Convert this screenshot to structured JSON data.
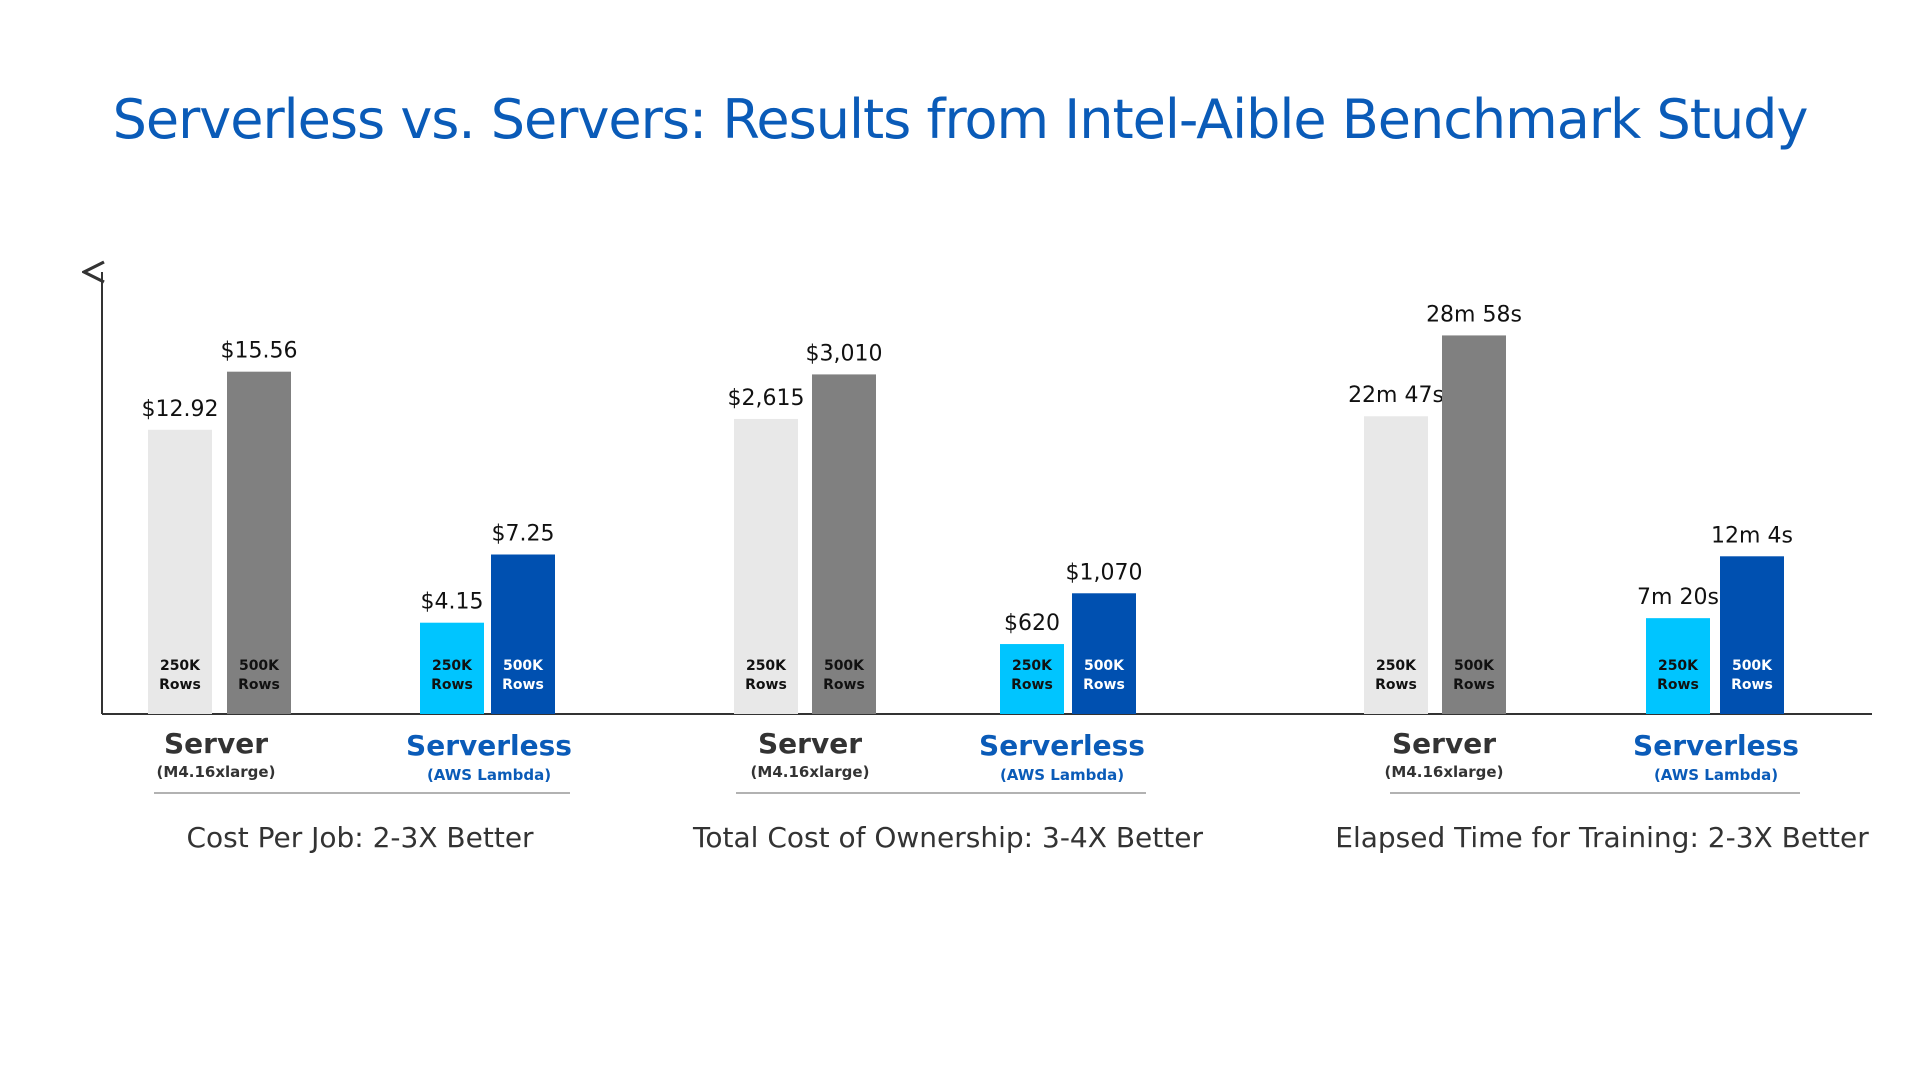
{
  "title": "Serverless vs. Servers: Results from Intel-Aible Benchmark Study",
  "colors": {
    "title": "#0a5bb8",
    "server_250k": "#e8e8e8",
    "server_500k": "#808080",
    "serverless_250k": "#00c5ff",
    "serverless_500k": "#0050b0",
    "serverless_label": "#0a5bb8",
    "axis": "#333333"
  },
  "chart_data": [
    {
      "type": "bar",
      "caption": "Cost Per Job: 2-3X Better",
      "categories": [
        "Server",
        "Serverless"
      ],
      "category_sublabels": [
        "(M4.16xlarge)",
        "(AWS Lambda)"
      ],
      "series": [
        {
          "name": "250K Rows",
          "values": [
            12.92,
            4.15
          ]
        },
        {
          "name": "500K Rows",
          "values": [
            15.56,
            7.25
          ]
        }
      ],
      "data_labels": [
        [
          "$12.92",
          "$4.15"
        ],
        [
          "$15.56",
          "$7.25"
        ]
      ],
      "bar_labels": [
        "250K Rows",
        "500K Rows"
      ],
      "ylim": [
        0,
        20
      ]
    },
    {
      "type": "bar",
      "caption": "Total Cost of Ownership: 3-4X Better",
      "categories": [
        "Server",
        "Serverless"
      ],
      "category_sublabels": [
        "(M4.16xlarge)",
        "(AWS Lambda)"
      ],
      "series": [
        {
          "name": "250K Rows",
          "values": [
            2615,
            620
          ]
        },
        {
          "name": "500K Rows",
          "values": [
            3010,
            1070
          ]
        }
      ],
      "data_labels": [
        [
          "$2,615",
          "$620"
        ],
        [
          "$3,010",
          "$1,070"
        ]
      ],
      "bar_labels": [
        "250K Rows",
        "500K Rows"
      ],
      "ylim": [
        0,
        3900
      ]
    },
    {
      "type": "bar",
      "caption": "Elapsed Time for Training: 2-3X Better",
      "categories": [
        "Server",
        "Serverless"
      ],
      "category_sublabels": [
        "(M4.16xlarge)",
        "(AWS Lambda)"
      ],
      "series": [
        {
          "name": "250K Rows",
          "values": [
            1367,
            440
          ]
        },
        {
          "name": "500K Rows",
          "values": [
            1738,
            724
          ]
        }
      ],
      "data_labels": [
        [
          "22m 47s",
          "7m 20s"
        ],
        [
          "28m 58s",
          "12m 4s"
        ]
      ],
      "bar_labels": [
        "250K Rows",
        "500K Rows"
      ],
      "ylim": [
        0,
        2020
      ]
    }
  ]
}
